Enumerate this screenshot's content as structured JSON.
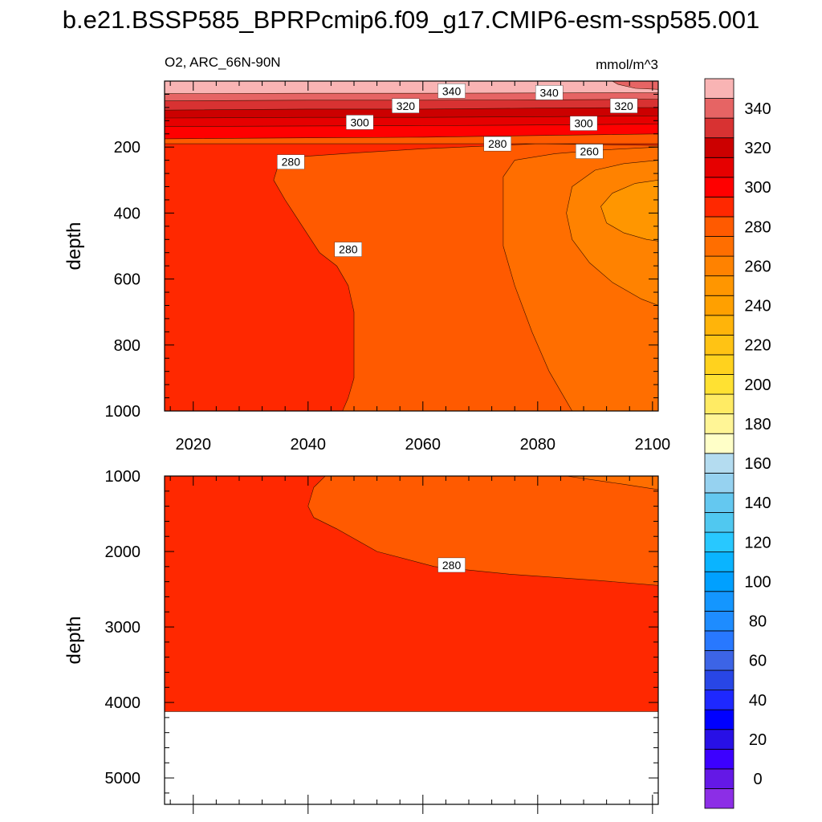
{
  "chart_data": {
    "type": "contour",
    "title": "b.e21.BSSP585_BPRPcmip6.f09_g17.CMIP6-esm-ssp585.001",
    "variable_label": "O2, ARC_66N-90N",
    "units_label": "mmol/m^3",
    "x": {
      "range": [
        2015,
        2101
      ],
      "ticks": [
        2020,
        2040,
        2060,
        2080,
        2100
      ],
      "tick_labels": [
        "2020",
        "2040",
        "2060",
        "2080",
        "2100"
      ]
    },
    "panels": [
      {
        "name": "upper",
        "ylabel": "depth",
        "ylim": [
          0,
          1000
        ],
        "yticks": [
          200,
          400,
          600,
          800,
          1000
        ],
        "ytick_labels": [
          "200",
          "400",
          "600",
          "800",
          "1000"
        ],
        "regions": [
          {
            "level": 270,
            "color": "#ff5a00",
            "points": [
              [
                2015,
                0
              ],
              [
                2101,
                0
              ],
              [
                2101,
                1000
              ],
              [
                2015,
                1000
              ]
            ]
          },
          {
            "level": 280,
            "color": "#ff2800",
            "points": [
              [
                2015,
                190
              ],
              [
                2101,
                190
              ],
              [
                2101,
                195
              ],
              [
                2080,
                190
              ],
              [
                2060,
                205
              ],
              [
                2048,
                218
              ],
              [
                2038,
                230
              ],
              [
                2035,
                244
              ],
              [
                2034,
                300
              ],
              [
                2036,
                360
              ],
              [
                2039,
                440
              ],
              [
                2042,
                520
              ],
              [
                2045,
                560
              ],
              [
                2047,
                620
              ],
              [
                2048,
                700
              ],
              [
                2048,
                800
              ],
              [
                2048,
                900
              ],
              [
                2047,
                960
              ],
              [
                2046,
                1000
              ],
              [
                2015,
                1000
              ]
            ]
          },
          {
            "level": 260,
            "color": "#ff6e00",
            "points": [
              [
                2101,
                200
              ],
              [
                2090,
                210
              ],
              [
                2083,
                220
              ],
              [
                2076,
                240
              ],
              [
                2074,
                290
              ],
              [
                2074,
                400
              ],
              [
                2074,
                500
              ],
              [
                2076,
                620
              ],
              [
                2079,
                760
              ],
              [
                2082,
                880
              ],
              [
                2086,
                1000
              ],
              [
                2101,
                1000
              ]
            ]
          },
          {
            "level": 250,
            "color": "#ff8200",
            "points": [
              [
                2101,
                240
              ],
              [
                2095,
                250
              ],
              [
                2090,
                270
              ],
              [
                2086,
                320
              ],
              [
                2085,
                400
              ],
              [
                2086,
                480
              ],
              [
                2089,
                550
              ],
              [
                2093,
                610
              ],
              [
                2098,
                660
              ],
              [
                2101,
                680
              ]
            ]
          },
          {
            "level": 240,
            "color": "#ff9600",
            "points": [
              [
                2101,
                300
              ],
              [
                2097,
                310
              ],
              [
                2093,
                340
              ],
              [
                2091,
                380
              ],
              [
                2092,
                430
              ],
              [
                2095,
                460
              ],
              [
                2099,
                480
              ],
              [
                2101,
                485
              ]
            ]
          },
          {
            "level": 290,
            "color": "#ff0000",
            "points": [
              [
                2015,
                0
              ],
              [
                2101,
                0
              ],
              [
                2101,
                160
              ],
              [
                2080,
                165
              ],
              [
                2060,
                170
              ],
              [
                2040,
                172
              ],
              [
                2015,
                175
              ]
            ]
          },
          {
            "level": 300,
            "color": "#e60000",
            "points": [
              [
                2015,
                0
              ],
              [
                2101,
                0
              ],
              [
                2101,
                130
              ],
              [
                2080,
                133
              ],
              [
                2060,
                135
              ],
              [
                2040,
                136
              ],
              [
                2015,
                138
              ]
            ]
          },
          {
            "level": 310,
            "color": "#cc0000",
            "points": [
              [
                2015,
                0
              ],
              [
                2101,
                0
              ],
              [
                2101,
                105
              ],
              [
                2080,
                108
              ],
              [
                2060,
                110
              ],
              [
                2040,
                110
              ],
              [
                2015,
                112
              ]
            ]
          },
          {
            "level": 320,
            "color": "#d83232",
            "points": [
              [
                2015,
                0
              ],
              [
                2101,
                0
              ],
              [
                2101,
                80
              ],
              [
                2080,
                82
              ],
              [
                2060,
                85
              ],
              [
                2040,
                85
              ],
              [
                2015,
                88
              ]
            ]
          },
          {
            "level": 330,
            "color": "#e66464",
            "points": [
              [
                2015,
                0
              ],
              [
                2101,
                0
              ],
              [
                2101,
                55
              ],
              [
                2080,
                57
              ],
              [
                2060,
                58
              ],
              [
                2040,
                58
              ],
              [
                2015,
                60
              ]
            ]
          },
          {
            "level": 340,
            "color": "#f9b4b4",
            "points": [
              [
                2015,
                0
              ],
              [
                2101,
                0
              ],
              [
                2101,
                35
              ],
              [
                2080,
                36
              ],
              [
                2060,
                37
              ],
              [
                2040,
                37
              ],
              [
                2015,
                38
              ]
            ]
          },
          {
            "level": 345,
            "color": "#e66464",
            "points": [
              [
                2093,
                0
              ],
              [
                2101,
                0
              ],
              [
                2101,
                25
              ],
              [
                2097,
                22
              ],
              [
                2094,
                10
              ]
            ]
          }
        ],
        "contour_labels": [
          {
            "text": "340",
            "x": 2065,
            "y": 30
          },
          {
            "text": "340",
            "x": 2082,
            "y": 35
          },
          {
            "text": "320",
            "x": 2057,
            "y": 75
          },
          {
            "text": "320",
            "x": 2095,
            "y": 75
          },
          {
            "text": "300",
            "x": 2049,
            "y": 125
          },
          {
            "text": "300",
            "x": 2088,
            "y": 128
          },
          {
            "text": "280",
            "x": 2073,
            "y": 190
          },
          {
            "text": "280",
            "x": 2037,
            "y": 245
          },
          {
            "text": "260",
            "x": 2089,
            "y": 213
          },
          {
            "text": "280",
            "x": 2047,
            "y": 510
          }
        ]
      },
      {
        "name": "lower",
        "ylabel": "depth",
        "ylim": [
          1000,
          5350
        ],
        "yticks": [
          1000,
          2000,
          3000,
          4000,
          5000
        ],
        "ytick_labels": [
          "1000",
          "2000",
          "3000",
          "4000",
          "5000"
        ],
        "regions": [
          {
            "level": 280,
            "color": "#ff2800",
            "points": [
              [
                2015,
                1000
              ],
              [
                2101,
                1000
              ],
              [
                2101,
                4120
              ],
              [
                2015,
                4120
              ]
            ]
          },
          {
            "level": 270,
            "color": "#ff5a00",
            "points": [
              [
                2043,
                1000
              ],
              [
                2101,
                1000
              ],
              [
                2101,
                2450
              ],
              [
                2090,
                2380
              ],
              [
                2075,
                2300
              ],
              [
                2062,
                2200
              ],
              [
                2052,
                2000
              ],
              [
                2045,
                1700
              ],
              [
                2041,
                1550
              ],
              [
                2040,
                1400
              ],
              [
                2041,
                1150
              ]
            ]
          },
          {
            "level": 260,
            "color": "#ff6e00",
            "points": [
              [
                2085,
                1000
              ],
              [
                2101,
                1000
              ],
              [
                2101,
                1180
              ],
              [
                2095,
                1110
              ]
            ]
          }
        ],
        "contour_labels": [
          {
            "text": "280",
            "x": 2065,
            "y": 2180
          }
        ]
      }
    ],
    "colorbar": {
      "levels": [
        -10,
        0,
        10,
        20,
        30,
        40,
        50,
        60,
        70,
        80,
        90,
        100,
        110,
        120,
        130,
        140,
        150,
        160,
        170,
        180,
        190,
        200,
        210,
        220,
        230,
        240,
        250,
        260,
        270,
        280,
        290,
        300,
        310,
        320,
        330,
        340,
        350,
        360
      ],
      "colors": [
        "#8c2ee6",
        "#6418e6",
        "#3c00ff",
        "#2810e6",
        "#0000ff",
        "#1e28ff",
        "#2846e6",
        "#3c64e6",
        "#2878ff",
        "#1e8cff",
        "#1496ff",
        "#00a0ff",
        "#0ab4ff",
        "#28c8ff",
        "#50c8f0",
        "#64c8f0",
        "#96d2f0",
        "#b4dcf0",
        "#ffffc8",
        "#fff596",
        "#ffeb64",
        "#ffe132",
        "#ffd21e",
        "#ffc314",
        "#ffb40a",
        "#ffa000",
        "#ff9600",
        "#ff8200",
        "#ff6e00",
        "#ff5a00",
        "#ff2800",
        "#ff0000",
        "#e60000",
        "#cc0000",
        "#d83232",
        "#e66464",
        "#f9b4b4"
      ],
      "labels": [
        "0",
        "20",
        "40",
        "60",
        "80",
        "100",
        "120",
        "140",
        "160",
        "180",
        "200",
        "220",
        "240",
        "260",
        "280",
        "300",
        "320",
        "340"
      ]
    }
  }
}
